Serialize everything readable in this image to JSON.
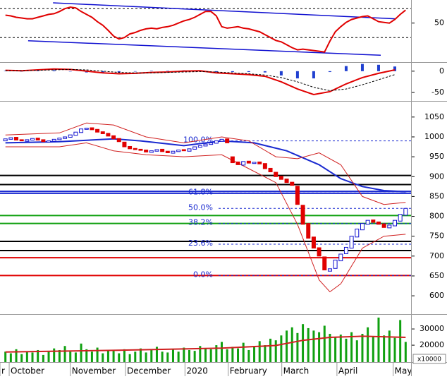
{
  "chart_data": [
    {
      "type": "line",
      "color": "#e00000",
      "xlim": [
        -1,
        75
      ],
      "ylim": [
        -4,
        80
      ],
      "yticks": [
        50
      ],
      "levels": [
        70,
        30
      ],
      "values": [
        61,
        60,
        58,
        57,
        56,
        56,
        58,
        60,
        62,
        63,
        66,
        70,
        72,
        71,
        66,
        62,
        58,
        52,
        47,
        40,
        32,
        28,
        30,
        35,
        37,
        40,
        42,
        43,
        42,
        44,
        45,
        47,
        50,
        53,
        55,
        58,
        62,
        66,
        66,
        60,
        45,
        43,
        44,
        45,
        43,
        42,
        40,
        38,
        34,
        30,
        26,
        24,
        20,
        16,
        13,
        14,
        13,
        12,
        11,
        10,
        25,
        38,
        45,
        51,
        55,
        57,
        59,
        60,
        56,
        52,
        51,
        50,
        55,
        62,
        68
      ],
      "trendlines": [
        {
          "color": "#1010d0",
          "x": [
            8.8,
            72
          ],
          "values": [
            78,
            56
          ]
        },
        {
          "color": "#1010d0",
          "x": [
            4.2,
            69.4
          ],
          "values": [
            25.6,
            5.5
          ]
        }
      ]
    },
    {
      "type": "macd",
      "xlim": [
        -1,
        75
      ],
      "ylim": [
        -70,
        18
      ],
      "yticks": [
        0,
        -50
      ],
      "x": [
        0,
        3,
        6,
        9,
        12,
        15,
        18,
        21,
        24,
        27,
        30,
        33,
        36,
        39,
        42,
        45,
        48,
        51,
        54,
        57,
        60,
        63,
        66,
        69,
        72
      ],
      "series": [
        {
          "color": "#e00000",
          "values": [
            2,
            1,
            3,
            5,
            4,
            0,
            -4,
            -6,
            -5,
            -3,
            -2,
            0,
            1,
            -4,
            -6,
            -8,
            -12,
            -25,
            -42,
            -55,
            -48,
            -30,
            -15,
            -5,
            3
          ]
        },
        {
          "color": "#000000",
          "values": [
            1,
            1,
            2,
            3,
            4,
            3,
            0,
            -3,
            -4,
            -4,
            -3,
            -2,
            -1,
            -2,
            -4,
            -6,
            -9,
            -15,
            -25,
            -38,
            -46,
            -42,
            -32,
            -20,
            -8
          ]
        }
      ],
      "histogram": {
        "color": "#2040d0",
        "values": [
          1,
          0,
          1,
          2,
          0,
          -3,
          -4,
          -3,
          -1,
          1,
          1,
          2,
          2,
          -2,
          -2,
          -2,
          -3,
          -10,
          -17,
          -17,
          -2,
          12,
          17,
          15,
          11
        ]
      }
    },
    {
      "type": "candlestick",
      "xlim": [
        -1,
        75
      ],
      "ylim": [
        554,
        1087
      ],
      "yticks": [
        600,
        650,
        700,
        750,
        800,
        850,
        900,
        950,
        1000,
        1050
      ],
      "up_color": "#1010d0",
      "down_color": "#e00000",
      "open": [
        990,
        994,
        999,
        993,
        989,
        992,
        997,
        993,
        987,
        989,
        993,
        996,
        999,
        1004,
        1011,
        1019,
        1023,
        1019,
        1013,
        1009,
        1003,
        996,
        987,
        976,
        971,
        969,
        967,
        961,
        964,
        969,
        964,
        959,
        963,
        968,
        964,
        969,
        974,
        977,
        981,
        984,
        989,
        995,
        950,
        937,
        929,
        939,
        933,
        937,
        933,
        921,
        911,
        901,
        894,
        886,
        876,
        828,
        782,
        748,
        721,
        698,
        662,
        669,
        688,
        706,
        720,
        748,
        766,
        780,
        791,
        786,
        781,
        771,
        776,
        788,
        803
      ],
      "close": [
        995,
        998,
        992,
        990,
        993,
        996,
        992,
        988,
        990,
        994,
        997,
        1000,
        1005,
        1012,
        1020,
        1022,
        1018,
        1012,
        1008,
        1002,
        995,
        988,
        975,
        970,
        968,
        966,
        962,
        965,
        968,
        963,
        960,
        964,
        967,
        965,
        970,
        975,
        978,
        982,
        985,
        990,
        994,
        985,
        935,
        930,
        938,
        934,
        936,
        932,
        920,
        912,
        900,
        893,
        885,
        878,
        830,
        780,
        745,
        720,
        700,
        665,
        668,
        690,
        705,
        722,
        750,
        768,
        782,
        790,
        785,
        780,
        772,
        778,
        790,
        805,
        820
      ],
      "overlays": [
        {
          "color": "#1a2ad0",
          "x": [
            0,
            10,
            20,
            25,
            33,
            40,
            46,
            52,
            58,
            62,
            66,
            70,
            74
          ],
          "values": [
            985,
            988,
            995,
            990,
            978,
            990,
            985,
            965,
            930,
            895,
            875,
            865,
            862
          ]
        },
        {
          "color": "#d02020",
          "x": [
            0,
            10,
            15,
            20,
            26,
            33,
            40,
            45,
            50,
            54,
            58,
            62,
            66,
            70,
            74
          ],
          "values": [
            1005,
            1010,
            1035,
            1030,
            1000,
            985,
            1000,
            990,
            950,
            945,
            960,
            930,
            850,
            830,
            835
          ]
        },
        {
          "color": "#d02020",
          "x": [
            0,
            10,
            15,
            20,
            26,
            33,
            40,
            45,
            50,
            54,
            58,
            60,
            62,
            66,
            70,
            74
          ],
          "values": [
            975,
            975,
            985,
            965,
            955,
            950,
            955,
            920,
            885,
            780,
            640,
            610,
            630,
            720,
            750,
            755
          ]
        }
      ],
      "hlines": [
        {
          "value": 903,
          "color": "#000000"
        },
        {
          "value": 880,
          "color": "#000000"
        },
        {
          "value": 863,
          "color": "#1a2ad0"
        },
        {
          "value": 858,
          "color": "#1a2ad0"
        },
        {
          "value": 802,
          "color": "#10a010"
        },
        {
          "value": 782,
          "color": "#10a010"
        },
        {
          "value": 737,
          "color": "#000000"
        },
        {
          "value": 714,
          "color": "#000000"
        },
        {
          "value": 696,
          "color": "#e00000"
        },
        {
          "value": 651,
          "color": "#e00000"
        }
      ],
      "fib_color": "#1a2ad0",
      "fib_levels": [
        {
          "value": 990,
          "label": "100.0%"
        },
        {
          "value": 859,
          "label": "61.8%"
        },
        {
          "value": 820,
          "label": "50.0%"
        },
        {
          "value": 782,
          "label": "38.2%"
        },
        {
          "value": 730,
          "label": "23.6%"
        },
        {
          "value": 651,
          "label": "0.0%"
        }
      ]
    },
    {
      "type": "bar",
      "color": "#10a010",
      "xlim": [
        -1,
        75
      ],
      "ylim": [
        9600,
        38300
      ],
      "yticks": [
        20000,
        30000
      ],
      "unit_label": "x10000",
      "values": [
        16000,
        15000,
        17500,
        14500,
        16000,
        15500,
        17000,
        14000,
        16500,
        18000,
        17000,
        19500,
        16000,
        15500,
        21000,
        17500,
        16000,
        18500,
        15000,
        17000,
        16500,
        15000,
        17500,
        14500,
        16000,
        18000,
        15500,
        17000,
        19000,
        16000,
        15500,
        17500,
        16000,
        18500,
        17000,
        16500,
        19500,
        18000,
        17500,
        20000,
        22000,
        17500,
        19000,
        18000,
        21500,
        17000,
        19500,
        22500,
        20000,
        24000,
        23000,
        26000,
        29000,
        31000,
        27500,
        33000,
        30500,
        29000,
        28000,
        32000,
        27000,
        25000,
        26500,
        24000,
        28000,
        23000,
        27000,
        31000,
        25000,
        37000,
        26000,
        29000,
        24500,
        35500,
        22000
      ],
      "ma": {
        "color": "#d02020",
        "x": [
          0,
          20,
          40,
          50,
          55,
          60,
          66,
          74
        ],
        "values": [
          15800,
          16800,
          18200,
          19800,
          23000,
          24800,
          25500,
          24800
        ]
      },
      "xticks": [
        {
          "value": -1,
          "label": "r"
        },
        {
          "value": 0.7,
          "label": "October"
        },
        {
          "value": 12.0,
          "label": "November"
        },
        {
          "value": 22.2,
          "label": "December"
        },
        {
          "value": 33.2,
          "label": "2020"
        },
        {
          "value": 41.2,
          "label": "February"
        },
        {
          "value": 51.1,
          "label": "March"
        },
        {
          "value": 61.3,
          "label": "April"
        },
        {
          "value": 71.7,
          "label": "May"
        }
      ]
    }
  ]
}
